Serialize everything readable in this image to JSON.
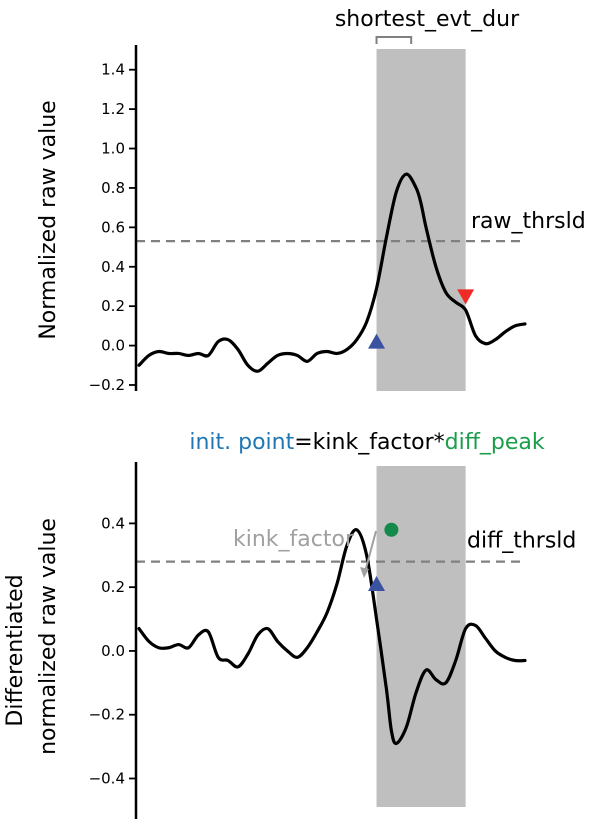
{
  "chart_data": [
    {
      "type": "line",
      "ylabel": "Normalized raw value",
      "xlabel": "",
      "ylim": [
        -0.2,
        1.5
      ],
      "yticks": [
        -0.2,
        0.0,
        0.2,
        0.4,
        0.6,
        0.8,
        1.0,
        1.2,
        1.4
      ],
      "ytick_labels": [
        "−0.2",
        "0.0",
        "0.2",
        "0.4",
        "0.6",
        "0.8",
        "1.0",
        "1.2",
        "1.4"
      ],
      "grid": false,
      "shaded_region": {
        "x_start": 2.4,
        "x_end": 3.3,
        "color": "#bfbfbf"
      },
      "threshold": {
        "y": 0.53,
        "label": "raw_thrsld",
        "color": "#808080"
      },
      "duration_annotation": {
        "label": "shortest_evt_dur",
        "x_start": 2.4,
        "x_end": 2.75
      },
      "series": [
        {
          "color": "#000000",
          "x": [
            0.0,
            0.1,
            0.2,
            0.3,
            0.4,
            0.5,
            0.6,
            0.7,
            0.8,
            0.9,
            1.0,
            1.1,
            1.2,
            1.3,
            1.4,
            1.5,
            1.6,
            1.7,
            1.8,
            1.9,
            2.0,
            2.1,
            2.2,
            2.3,
            2.4,
            2.5,
            2.6,
            2.7,
            2.8,
            2.85,
            2.9,
            3.0,
            3.1,
            3.2,
            3.3,
            3.4,
            3.5,
            3.6,
            3.7,
            3.8,
            3.9
          ],
          "y": [
            -0.1,
            -0.05,
            -0.03,
            -0.04,
            -0.04,
            -0.05,
            -0.04,
            -0.05,
            0.02,
            0.03,
            -0.02,
            -0.1,
            -0.13,
            -0.09,
            -0.05,
            -0.04,
            -0.05,
            -0.08,
            -0.04,
            -0.03,
            -0.04,
            -0.02,
            0.03,
            0.12,
            0.29,
            0.55,
            0.78,
            0.87,
            0.8,
            0.72,
            0.6,
            0.4,
            0.27,
            0.22,
            0.18,
            0.05,
            0.01,
            0.03,
            0.07,
            0.1,
            0.11
          ]
        }
      ],
      "markers": [
        {
          "x": 2.4,
          "y": 0.02,
          "shape": "triangle-up",
          "color": "#3b52a0"
        },
        {
          "x": 3.3,
          "y": 0.25,
          "shape": "triangle-down",
          "color": "#ee2b24"
        }
      ]
    },
    {
      "type": "line",
      "ylabel": "Differentiated\nnormalized raw value",
      "xlabel": "",
      "ylim": [
        -0.48,
        0.58
      ],
      "yticks": [
        -0.4,
        -0.2,
        0.0,
        0.2,
        0.4
      ],
      "ytick_labels": [
        "−0.4",
        "−0.2",
        "0.0",
        "0.2",
        "0.4"
      ],
      "grid": false,
      "shaded_region": {
        "x_start": 2.4,
        "x_end": 3.3,
        "color": "#bfbfbf"
      },
      "threshold": {
        "y": 0.28,
        "label": "diff_thrsld",
        "color": "#808080"
      },
      "kink_annotation": {
        "label": "kink_factor",
        "color": "#a0a0a0"
      },
      "formula": {
        "part1": "init. point",
        "part1_color": "#1f78b4",
        "part2": "=kink_factor*",
        "part2_color": "#000000",
        "part3": "diff_peak",
        "part3_color": "#1a9e4a"
      },
      "series": [
        {
          "color": "#000000",
          "x": [
            0.0,
            0.1,
            0.2,
            0.3,
            0.4,
            0.5,
            0.6,
            0.7,
            0.8,
            0.9,
            1.0,
            1.1,
            1.2,
            1.3,
            1.4,
            1.5,
            1.6,
            1.7,
            1.8,
            1.9,
            2.0,
            2.1,
            2.2,
            2.3,
            2.4,
            2.5,
            2.55,
            2.6,
            2.7,
            2.8,
            2.9,
            3.0,
            3.1,
            3.2,
            3.3,
            3.4,
            3.5,
            3.6,
            3.7,
            3.8,
            3.9
          ],
          "y": [
            0.07,
            0.03,
            0.01,
            0.01,
            0.02,
            0.01,
            0.05,
            0.06,
            -0.02,
            -0.03,
            -0.05,
            -0.01,
            0.05,
            0.07,
            0.03,
            0.0,
            -0.02,
            0.01,
            0.06,
            0.12,
            0.21,
            0.33,
            0.38,
            0.3,
            0.1,
            -0.12,
            -0.25,
            -0.29,
            -0.24,
            -0.13,
            -0.06,
            -0.09,
            -0.1,
            -0.03,
            0.07,
            0.08,
            0.04,
            0.0,
            -0.02,
            -0.03,
            -0.03
          ]
        }
      ],
      "markers": [
        {
          "x": 2.4,
          "y": 0.21,
          "shape": "triangle-up",
          "color": "#3b52a0"
        },
        {
          "x": 2.55,
          "y": 0.38,
          "shape": "circle",
          "color": "#138a4a"
        }
      ]
    }
  ]
}
